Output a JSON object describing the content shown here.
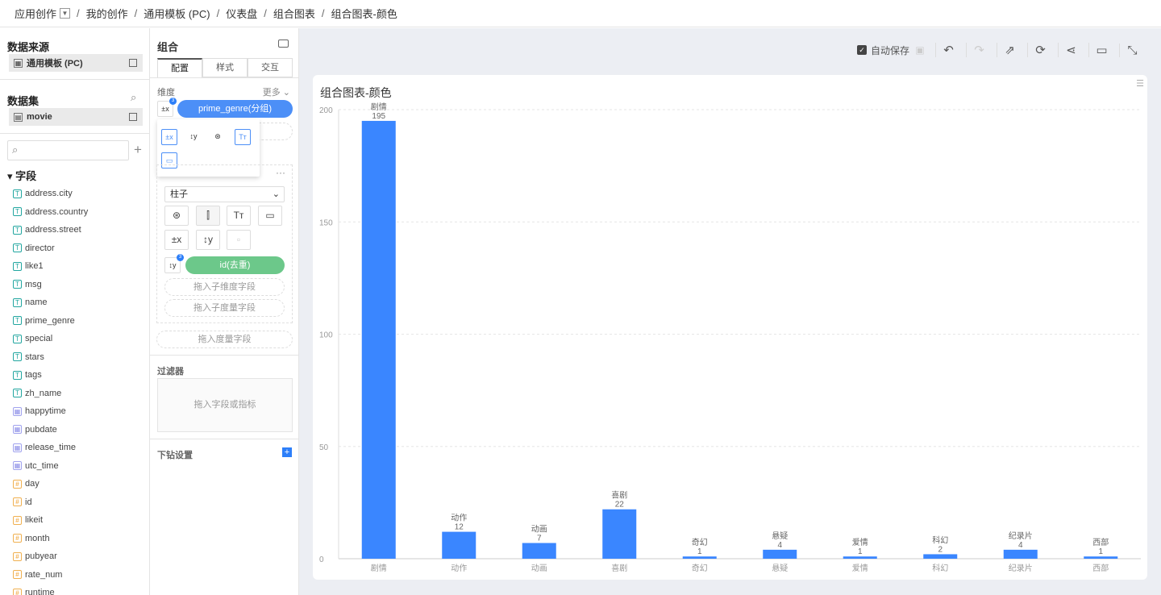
{
  "breadcrumb": [
    "应用创作",
    "我的创作",
    "通用模板 (PC)",
    "仪表盘",
    "组合图表",
    "组合图表-颜色"
  ],
  "left": {
    "datasource_title": "数据来源",
    "datasource": "通用模板 (PC)",
    "dataset_title": "数据集",
    "dataset": "movie",
    "fields_title": "字段",
    "fields": [
      {
        "name": "address.city",
        "type": "T"
      },
      {
        "name": "address.country",
        "type": "T"
      },
      {
        "name": "address.street",
        "type": "T"
      },
      {
        "name": "director",
        "type": "T"
      },
      {
        "name": "like1",
        "type": "T"
      },
      {
        "name": "msg",
        "type": "T"
      },
      {
        "name": "name",
        "type": "T"
      },
      {
        "name": "prime_genre",
        "type": "T"
      },
      {
        "name": "special",
        "type": "T"
      },
      {
        "name": "stars",
        "type": "T"
      },
      {
        "name": "tags",
        "type": "T"
      },
      {
        "name": "zh_name",
        "type": "T"
      },
      {
        "name": "happytime",
        "type": "D"
      },
      {
        "name": "pubdate",
        "type": "D"
      },
      {
        "name": "release_time",
        "type": "D"
      },
      {
        "name": "utc_time",
        "type": "D"
      },
      {
        "name": "day",
        "type": "#"
      },
      {
        "name": "id",
        "type": "#"
      },
      {
        "name": "likeit",
        "type": "#"
      },
      {
        "name": "month",
        "type": "#"
      },
      {
        "name": "pubyear",
        "type": "#"
      },
      {
        "name": "rate_num",
        "type": "#"
      },
      {
        "name": "runtime",
        "type": "#"
      }
    ]
  },
  "mid": {
    "title": "组合",
    "tabs": [
      "配置",
      "样式",
      "交互"
    ],
    "dimension_label": "维度",
    "more": "更多",
    "dim_pill": "prime_genre(分组)",
    "chart_type": "柱子",
    "measure_pill": "id(去重)",
    "badge": "3",
    "drop_sub_dim": "拖入子维度字段",
    "drop_sub_measure": "拖入子度量字段",
    "drop_measure": "拖入度量字段",
    "filter_label": "过滤器",
    "filter_drop": "拖入字段或指标",
    "drill_label": "下钻设置"
  },
  "toolbar": {
    "autosave": "自动保存",
    "autosave_checked": true
  },
  "colors": {
    "bar": "#3a86ff",
    "dim_pill": "#4c8ff7",
    "measure_pill": "#6cc88a"
  },
  "chart_data": {
    "type": "bar",
    "title": "组合图表-颜色",
    "categories": [
      "剧情",
      "动作",
      "动画",
      "喜剧",
      "奇幻",
      "悬疑",
      "爱情",
      "科幻",
      "纪录片",
      "西部"
    ],
    "values": [
      195,
      12,
      7,
      22,
      1,
      4,
      1,
      2,
      4,
      1
    ],
    "yticks": [
      0,
      50,
      100,
      150,
      200
    ],
    "ylim": [
      0,
      200
    ],
    "grid": true
  }
}
